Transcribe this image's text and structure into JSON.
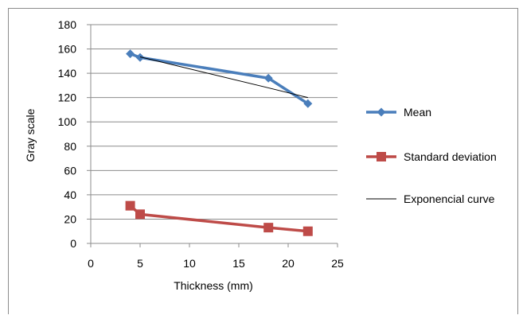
{
  "chart_data": {
    "type": "line",
    "xlabel": "Thickness (mm)",
    "ylabel": "Gray scale",
    "xlim": [
      0,
      25
    ],
    "ylim": [
      0,
      180
    ],
    "xticks": [
      0,
      5,
      10,
      15,
      20,
      25
    ],
    "yticks": [
      0,
      20,
      40,
      60,
      80,
      100,
      120,
      140,
      160,
      180
    ],
    "grid": "horizontal",
    "legend_position": "right",
    "series": [
      {
        "name": "Mean",
        "color": "#4a7ebb",
        "marker": "diamond",
        "x": [
          4,
          5,
          18,
          22
        ],
        "y": [
          156,
          153,
          136,
          115
        ]
      },
      {
        "name": "Standard deviation",
        "color": "#be4b48",
        "marker": "square",
        "x": [
          4,
          5,
          18,
          22
        ],
        "y": [
          31,
          24,
          13,
          10
        ]
      },
      {
        "name": "Exponencial curve",
        "color": "#000000",
        "marker": "none",
        "x": [
          5,
          18,
          22
        ],
        "y": [
          153.5,
          128,
          120
        ]
      }
    ]
  }
}
